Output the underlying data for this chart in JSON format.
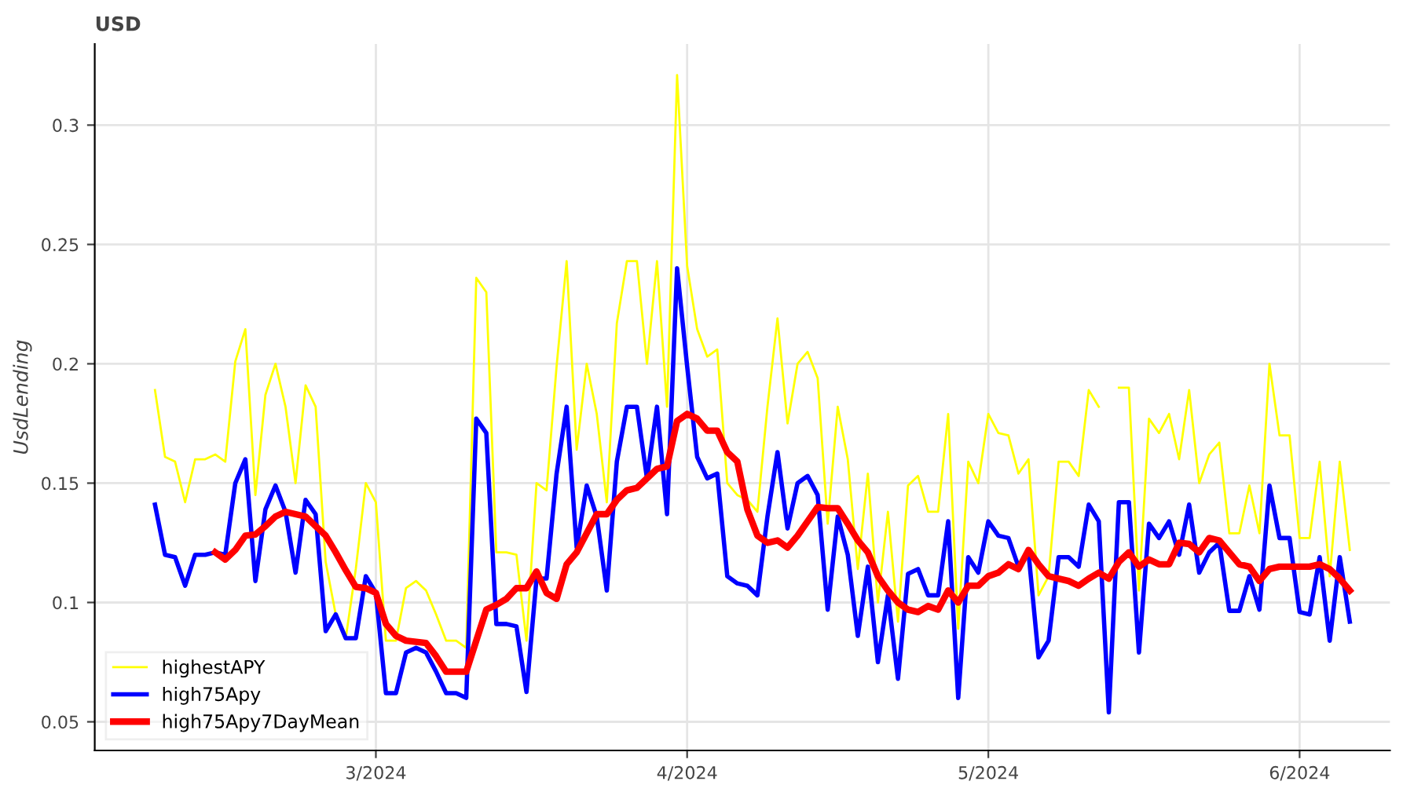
{
  "chart_data": {
    "type": "line",
    "title": "USD",
    "ylabel": "UsdLending",
    "x": [
      "2024-02-08",
      "2024-02-09",
      "2024-02-10",
      "2024-02-11",
      "2024-02-12",
      "2024-02-13",
      "2024-02-14",
      "2024-02-15",
      "2024-02-16",
      "2024-02-17",
      "2024-02-18",
      "2024-02-19",
      "2024-02-20",
      "2024-02-21",
      "2024-02-22",
      "2024-02-23",
      "2024-02-24",
      "2024-02-25",
      "2024-02-26",
      "2024-02-27",
      "2024-02-28",
      "2024-02-29",
      "2024-03-01",
      "2024-03-02",
      "2024-03-03",
      "2024-03-04",
      "2024-03-05",
      "2024-03-06",
      "2024-03-07",
      "2024-03-08",
      "2024-03-09",
      "2024-03-10",
      "2024-03-11",
      "2024-03-12",
      "2024-03-13",
      "2024-03-14",
      "2024-03-15",
      "2024-03-16",
      "2024-03-17",
      "2024-03-18",
      "2024-03-19",
      "2024-03-20",
      "2024-03-21",
      "2024-03-22",
      "2024-03-23",
      "2024-03-24",
      "2024-03-25",
      "2024-03-26",
      "2024-03-27",
      "2024-03-28",
      "2024-03-29",
      "2024-03-30",
      "2024-03-31",
      "2024-04-01",
      "2024-04-02",
      "2024-04-03",
      "2024-04-04",
      "2024-04-05",
      "2024-04-06",
      "2024-04-07",
      "2024-04-08",
      "2024-04-09",
      "2024-04-10",
      "2024-04-11",
      "2024-04-12",
      "2024-04-13",
      "2024-04-14",
      "2024-04-15",
      "2024-04-16",
      "2024-04-17",
      "2024-04-18",
      "2024-04-19",
      "2024-04-20",
      "2024-04-21",
      "2024-04-22",
      "2024-04-23",
      "2024-04-24",
      "2024-04-25",
      "2024-04-26",
      "2024-04-27",
      "2024-04-28",
      "2024-04-29",
      "2024-04-30",
      "2024-05-01",
      "2024-05-02",
      "2024-05-03",
      "2024-05-04",
      "2024-05-05",
      "2024-05-06",
      "2024-05-07",
      "2024-05-08",
      "2024-05-09",
      "2024-05-10",
      "2024-05-11",
      "2024-05-12",
      "2024-05-13",
      "2024-05-14",
      "2024-05-15",
      "2024-05-16",
      "2024-05-17",
      "2024-05-18",
      "2024-05-19",
      "2024-05-20",
      "2024-05-21",
      "2024-05-22",
      "2024-05-23",
      "2024-05-24",
      "2024-05-25",
      "2024-05-26",
      "2024-05-27",
      "2024-05-28",
      "2024-05-29",
      "2024-05-30",
      "2024-05-31",
      "2024-06-01",
      "2024-06-02",
      "2024-06-03",
      "2024-06-04",
      "2024-06-05",
      "2024-06-06"
    ],
    "series": [
      {
        "name": "highestAPY",
        "color": "#ffff00",
        "values": [
          0.189,
          0.161,
          0.159,
          0.142,
          0.16,
          0.16,
          0.162,
          0.159,
          0.201,
          0.2145,
          0.145,
          0.187,
          0.2,
          0.182,
          0.15,
          0.191,
          0.182,
          0.117,
          0.095,
          0.085,
          0.114,
          0.15,
          0.142,
          0.084,
          0.084,
          0.106,
          0.109,
          0.105,
          0.095,
          0.084,
          0.084,
          0.081,
          0.236,
          0.23,
          0.121,
          0.121,
          0.12,
          0.084,
          0.15,
          0.147,
          0.199,
          0.243,
          0.164,
          0.2,
          0.179,
          0.142,
          0.217,
          0.243,
          0.243,
          0.2,
          0.243,
          0.182,
          0.321,
          0.241,
          0.2145,
          0.203,
          0.206,
          0.15,
          0.145,
          0.143,
          0.138,
          0.182,
          0.219,
          0.175,
          0.2,
          0.205,
          0.194,
          0.133,
          0.182,
          0.16,
          0.114,
          0.154,
          0.1,
          0.138,
          0.092,
          0.149,
          0.153,
          0.138,
          0.138,
          0.179,
          0.089,
          0.159,
          0.15,
          0.179,
          0.171,
          0.17,
          0.154,
          0.16,
          0.103,
          0.111,
          0.159,
          0.159,
          0.153,
          0.189,
          0.182,
          null,
          0.19,
          0.19,
          0.105,
          0.177,
          0.171,
          0.179,
          0.16,
          0.189,
          0.15,
          0.162,
          0.167,
          0.129,
          0.129,
          0.149,
          0.129,
          0.2,
          0.17,
          0.17,
          0.127,
          0.127,
          0.159,
          0.111,
          0.159,
          0.122
        ]
      },
      {
        "name": "high75Apy",
        "color": "#0000ff",
        "values": [
          0.141,
          0.12,
          0.119,
          0.107,
          0.12,
          0.12,
          0.121,
          0.12,
          0.15,
          0.16,
          0.109,
          0.139,
          0.149,
          0.138,
          0.1125,
          0.143,
          0.137,
          0.088,
          0.095,
          0.085,
          0.085,
          0.111,
          0.104,
          0.062,
          0.062,
          0.079,
          0.081,
          0.079,
          0.071,
          0.062,
          0.062,
          0.06,
          0.177,
          0.171,
          0.091,
          0.091,
          0.09,
          0.0625,
          0.11,
          0.11,
          0.154,
          0.182,
          0.123,
          0.149,
          0.136,
          0.105,
          0.159,
          0.182,
          0.182,
          0.152,
          0.182,
          0.137,
          0.24,
          0.199,
          0.161,
          0.152,
          0.154,
          0.111,
          0.108,
          0.107,
          0.103,
          0.136,
          0.163,
          0.131,
          0.15,
          0.153,
          0.145,
          0.097,
          0.136,
          0.12,
          0.086,
          0.115,
          0.075,
          0.103,
          0.068,
          0.112,
          0.114,
          0.103,
          0.103,
          0.134,
          0.06,
          0.119,
          0.1125,
          0.134,
          0.128,
          0.127,
          0.115,
          0.121,
          0.077,
          0.084,
          0.119,
          0.119,
          0.115,
          0.141,
          0.134,
          0.054,
          0.142,
          0.142,
          0.079,
          0.133,
          0.127,
          0.134,
          0.12,
          0.141,
          0.1125,
          0.121,
          0.125,
          0.0965,
          0.0965,
          0.111,
          0.097,
          0.149,
          0.127,
          0.127,
          0.096,
          0.095,
          0.119,
          0.084,
          0.119,
          0.092
        ]
      },
      {
        "name": "high75Apy7DayMean",
        "color": "#ff0000",
        "values": [
          null,
          null,
          null,
          null,
          null,
          null,
          0.121,
          0.118,
          0.122,
          0.128,
          0.1285,
          0.132,
          0.136,
          0.138,
          0.137,
          0.136,
          0.132,
          0.128,
          0.121,
          0.1135,
          0.1065,
          0.106,
          0.104,
          0.091,
          0.086,
          0.084,
          0.0835,
          0.083,
          0.0775,
          0.071,
          0.071,
          0.071,
          0.084,
          0.097,
          0.099,
          0.1015,
          0.106,
          0.106,
          0.113,
          0.104,
          0.1015,
          0.116,
          0.121,
          0.129,
          0.137,
          0.137,
          0.143,
          0.147,
          0.148,
          0.152,
          0.156,
          0.157,
          0.176,
          0.179,
          0.177,
          0.172,
          0.172,
          0.163,
          0.159,
          0.139,
          0.128,
          0.125,
          0.126,
          0.123,
          0.128,
          0.134,
          0.14,
          0.1395,
          0.1395,
          0.133,
          0.126,
          0.121,
          0.111,
          0.105,
          0.1,
          0.097,
          0.096,
          0.0985,
          0.097,
          0.105,
          0.1,
          0.107,
          0.107,
          0.111,
          0.1125,
          0.116,
          0.114,
          0.122,
          0.116,
          0.111,
          0.11,
          0.109,
          0.107,
          0.11,
          0.1125,
          0.11,
          0.117,
          0.121,
          0.115,
          0.118,
          0.116,
          0.116,
          0.125,
          0.1245,
          0.121,
          0.127,
          0.126,
          0.121,
          0.116,
          0.115,
          0.109,
          0.114,
          0.115,
          0.115,
          0.115,
          0.115,
          0.116,
          0.114,
          0.11,
          0.105
        ]
      }
    ],
    "xlim": [
      "2024-02-02",
      "2024-06-10"
    ],
    "xticks": [
      {
        "value": "2024-03-01",
        "label": "3/2024"
      },
      {
        "value": "2024-04-01",
        "label": "4/2024"
      },
      {
        "value": "2024-05-01",
        "label": "5/2024"
      },
      {
        "value": "2024-06-01",
        "label": "6/2024"
      }
    ],
    "ylim": [
      0.038,
      0.334
    ],
    "yticks": [
      0.05,
      0.1,
      0.15,
      0.2,
      0.25,
      0.3
    ],
    "grid": true,
    "legend": "bottom left",
    "line_style": "solid",
    "marker": "none"
  }
}
